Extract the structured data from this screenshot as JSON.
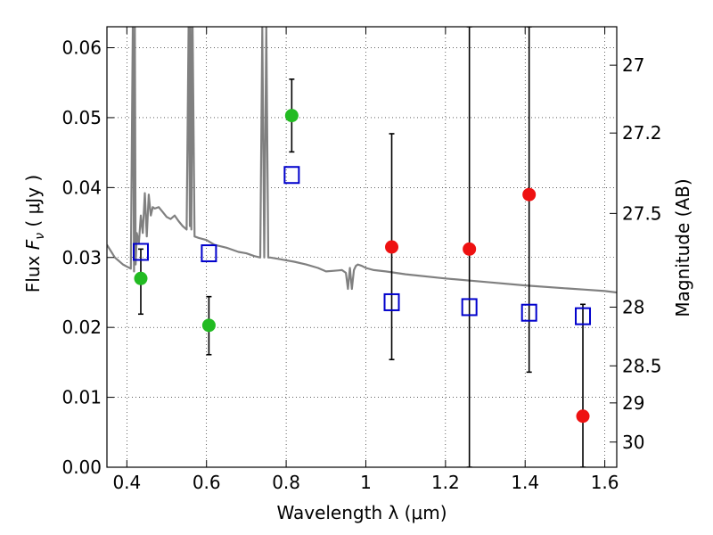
{
  "chart_data": {
    "type": "scatter",
    "xlabel": "Wavelength  λ (μm)",
    "ylabel": "Flux  F_ν ( μJy )",
    "ylabel_parts": {
      "prefix": "Flux  ",
      "symbol": "F",
      "subscript": "ν",
      "suffix": " (  μJy )"
    },
    "y2label": "Magnitude (AB)",
    "xlim": [
      0.35,
      1.63
    ],
    "ylim": [
      0.0,
      0.063
    ],
    "grid": true,
    "x_ticks": [
      0.4,
      0.6,
      0.8,
      1.0,
      1.2,
      1.4,
      1.6
    ],
    "x_tick_labels": [
      "0.4",
      "0.6",
      "0.8",
      "1",
      "1.2",
      "1.4",
      "1.6"
    ],
    "y_ticks": [
      0.0,
      0.01,
      0.02,
      0.03,
      0.04,
      0.05,
      0.06
    ],
    "y_tick_labels": [
      "0.00",
      "0.01",
      "0.02",
      "0.03",
      "0.04",
      "0.05",
      "0.06"
    ],
    "y2_ticks": [
      {
        "label": "27",
        "flux": 0.0575
      },
      {
        "label": "27.2",
        "flux": 0.0478
      },
      {
        "label": "27.5",
        "flux": 0.0363
      },
      {
        "label": "28",
        "flux": 0.0229
      },
      {
        "label": "28.5",
        "flux": 0.0145
      },
      {
        "label": "29",
        "flux": 0.0092
      },
      {
        "label": "30",
        "flux": 0.0036
      }
    ],
    "series": [
      {
        "marker": "circle",
        "color": "#22bb22",
        "points": [
          {
            "x": 0.435,
            "y": 0.027,
            "ylo": 0.0219,
            "yhi": 0.0312
          },
          {
            "x": 0.606,
            "y": 0.0203,
            "ylo": 0.0161,
            "yhi": 0.0244
          },
          {
            "x": 0.814,
            "y": 0.0503,
            "ylo": 0.0451,
            "yhi": 0.0555
          }
        ]
      },
      {
        "marker": "circle",
        "color": "#ee1111",
        "points": [
          {
            "x": 1.065,
            "y": 0.0315,
            "ylo": 0.0154,
            "yhi": 0.0477
          },
          {
            "x": 1.26,
            "y": 0.0312,
            "ylo": 0.0,
            "yhi": 0.063
          },
          {
            "x": 1.41,
            "y": 0.039,
            "ylo": 0.0136,
            "yhi": 0.063
          },
          {
            "x": 1.545,
            "y": 0.0073,
            "ylo": 0.0,
            "yhi": 0.0233
          }
        ]
      },
      {
        "marker": "square-open",
        "color": "#0000cc",
        "points": [
          {
            "x": 0.435,
            "y": 0.0308
          },
          {
            "x": 0.606,
            "y": 0.0306
          },
          {
            "x": 0.814,
            "y": 0.0418
          },
          {
            "x": 1.065,
            "y": 0.0236
          },
          {
            "x": 1.26,
            "y": 0.0229
          },
          {
            "x": 1.41,
            "y": 0.0221
          },
          {
            "x": 1.545,
            "y": 0.0216
          }
        ]
      }
    ],
    "model_sed": {
      "color": "#808080",
      "x": [
        0.35,
        0.37,
        0.39,
        0.41,
        0.415,
        0.418,
        0.42,
        0.422,
        0.425,
        0.43,
        0.435,
        0.44,
        0.445,
        0.45,
        0.455,
        0.46,
        0.465,
        0.47,
        0.48,
        0.49,
        0.5,
        0.51,
        0.52,
        0.53,
        0.54,
        0.55,
        0.555,
        0.558,
        0.56,
        0.562,
        0.565,
        0.57,
        0.58,
        0.6,
        0.62,
        0.65,
        0.68,
        0.7,
        0.72,
        0.735,
        0.74,
        0.745,
        0.75,
        0.755,
        0.76,
        0.78,
        0.8,
        0.82,
        0.85,
        0.88,
        0.9,
        0.92,
        0.94,
        0.95,
        0.955,
        0.96,
        0.965,
        0.97,
        0.975,
        0.98,
        0.99,
        1.0,
        1.02,
        1.05,
        1.1,
        1.2,
        1.3,
        1.4,
        1.5,
        1.55,
        1.6,
        1.63
      ],
      "y": [
        0.0318,
        0.03,
        0.029,
        0.0284,
        0.063,
        0.028,
        0.063,
        0.029,
        0.0335,
        0.032,
        0.036,
        0.0335,
        0.0392,
        0.033,
        0.039,
        0.036,
        0.0372,
        0.037,
        0.0372,
        0.0365,
        0.0358,
        0.0355,
        0.036,
        0.0352,
        0.0345,
        0.034,
        0.063,
        0.0345,
        0.063,
        0.034,
        0.063,
        0.033,
        0.0328,
        0.0325,
        0.0318,
        0.0314,
        0.0308,
        0.0306,
        0.0302,
        0.03,
        0.063,
        0.03,
        0.063,
        0.03,
        0.03,
        0.0298,
        0.0296,
        0.0294,
        0.029,
        0.0285,
        0.028,
        0.0281,
        0.0282,
        0.0278,
        0.0255,
        0.0285,
        0.0255,
        0.0282,
        0.0288,
        0.029,
        0.0288,
        0.0285,
        0.0282,
        0.028,
        0.0276,
        0.027,
        0.0265,
        0.026,
        0.0256,
        0.0254,
        0.0252,
        0.025
      ]
    }
  }
}
